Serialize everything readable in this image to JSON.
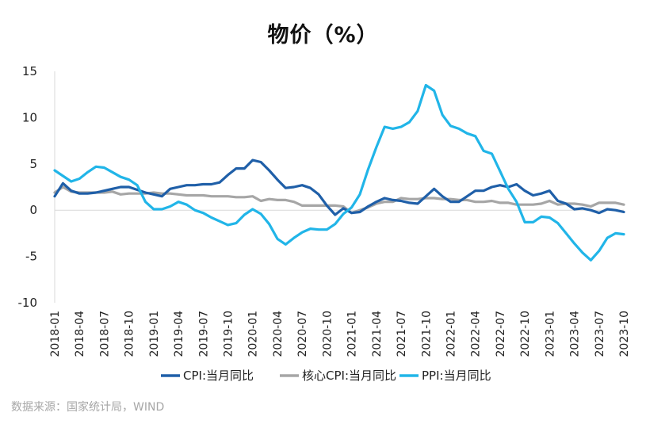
{
  "chart_data": {
    "type": "line",
    "title": "物价（%）",
    "xlabel": "",
    "ylabel": "",
    "ylim": [
      -10,
      15
    ],
    "yticks": [
      15,
      10,
      5,
      0,
      -5,
      -10
    ],
    "x_labels": [
      "2018-01",
      "2018-04",
      "2018-07",
      "2018-10",
      "2019-01",
      "2019-04",
      "2019-07",
      "2019-10",
      "2020-01",
      "2020-04",
      "2020-07",
      "2020-10",
      "2021-01",
      "2021-04",
      "2021-07",
      "2021-10",
      "2022-01",
      "2022-04",
      "2022-07",
      "2022-10",
      "2023-01",
      "2023-04",
      "2023-07",
      "2023-10"
    ],
    "x_start": "2018-01",
    "grid": false,
    "legend_position": "bottom",
    "series": [
      {
        "name": "CPI:当月同比",
        "color": "#1f5fa8",
        "values": [
          1.5,
          2.9,
          2.1,
          1.8,
          1.8,
          1.9,
          2.1,
          2.3,
          2.5,
          2.5,
          2.2,
          1.9,
          1.7,
          1.5,
          2.3,
          2.5,
          2.7,
          2.7,
          2.8,
          2.8,
          3.0,
          3.8,
          4.5,
          4.5,
          5.4,
          5.2,
          4.3,
          3.3,
          2.4,
          2.5,
          2.7,
          2.4,
          1.7,
          0.5,
          -0.5,
          0.2,
          -0.3,
          -0.2,
          0.4,
          0.9,
          1.3,
          1.1,
          1.0,
          0.8,
          0.7,
          1.5,
          2.3,
          1.5,
          0.9,
          0.9,
          1.5,
          2.1,
          2.1,
          2.5,
          2.7,
          2.5,
          2.8,
          2.1,
          1.6,
          1.8,
          2.1,
          1.0,
          0.7,
          0.1,
          0.2,
          0.0,
          -0.3,
          0.1,
          0.0,
          -0.2
        ]
      },
      {
        "name": "核心CPI:当月同比",
        "color": "#a6a6a6",
        "values": [
          1.9,
          2.5,
          2.0,
          1.9,
          1.9,
          1.9,
          1.9,
          2.0,
          1.7,
          1.8,
          1.8,
          1.8,
          1.9,
          1.8,
          1.8,
          1.7,
          1.6,
          1.6,
          1.6,
          1.5,
          1.5,
          1.5,
          1.4,
          1.4,
          1.5,
          1.0,
          1.2,
          1.1,
          1.1,
          0.9,
          0.5,
          0.5,
          0.5,
          0.5,
          0.5,
          0.4,
          -0.3,
          0.0,
          0.3,
          0.7,
          0.9,
          0.9,
          1.3,
          1.2,
          1.2,
          1.3,
          1.3,
          1.2,
          1.2,
          1.1,
          1.1,
          0.9,
          0.9,
          1.0,
          0.8,
          0.8,
          0.6,
          0.6,
          0.6,
          0.7,
          1.0,
          0.6,
          0.7,
          0.7,
          0.6,
          0.4,
          0.8,
          0.8,
          0.8,
          0.6
        ]
      },
      {
        "name": "PPI:当月同比",
        "color": "#21b5e8",
        "values": [
          4.3,
          3.7,
          3.1,
          3.4,
          4.1,
          4.7,
          4.6,
          4.1,
          3.6,
          3.3,
          2.7,
          0.9,
          0.1,
          0.1,
          0.4,
          0.9,
          0.6,
          0.0,
          -0.3,
          -0.8,
          -1.2,
          -1.6,
          -1.4,
          -0.5,
          0.1,
          -0.4,
          -1.5,
          -3.1,
          -3.7,
          -3.0,
          -2.4,
          -2.0,
          -2.1,
          -2.1,
          -1.5,
          -0.4,
          0.3,
          1.7,
          4.4,
          6.8,
          9.0,
          8.8,
          9.0,
          9.5,
          10.7,
          13.5,
          12.9,
          10.3,
          9.1,
          8.8,
          8.3,
          8.0,
          6.4,
          6.1,
          4.2,
          2.3,
          0.9,
          -1.3,
          -1.3,
          -0.7,
          -0.8,
          -1.4,
          -2.5,
          -3.6,
          -4.6,
          -5.4,
          -4.4,
          -3.0,
          -2.5,
          -2.6
        ]
      }
    ]
  },
  "source_note": "数据来源：国家统计局，WIND"
}
